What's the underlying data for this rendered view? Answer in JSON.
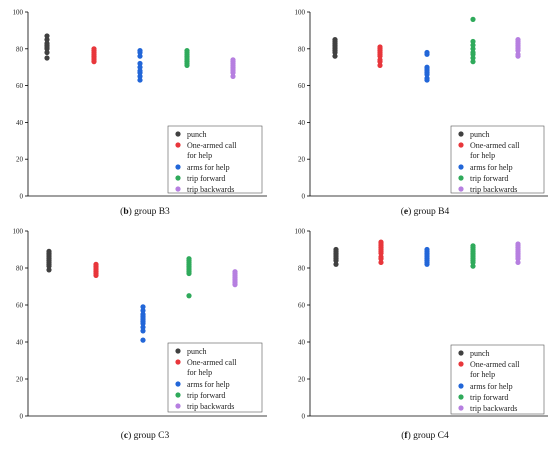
{
  "legend_entries": [
    "punch",
    "One-armed call for help",
    "arms for help",
    "trip forward",
    "trip backwards"
  ],
  "series_colors": {
    "punch": "#404040",
    "One-armed call for help": "#e8363b",
    "arms for help": "#2266d8",
    "trip forward": "#2faa5b",
    "trip backwards": "#b67fe0"
  },
  "panels": [
    {
      "caption_letter": "b",
      "caption_text": "group B3"
    },
    {
      "caption_letter": "e",
      "caption_text": "group B4"
    },
    {
      "caption_letter": "c",
      "caption_text": "group C3"
    },
    {
      "caption_letter": "f",
      "caption_text": "group C4"
    }
  ],
  "chart_data": [
    {
      "type": "scatter",
      "title": "(b) group B3",
      "ylim": [
        0,
        100
      ],
      "yticks": [
        0,
        20,
        40,
        60,
        80,
        100
      ],
      "grid": false,
      "legend_position": "bottom-right",
      "series": [
        {
          "name": "punch",
          "values": [
            75,
            78,
            80,
            81,
            82,
            83,
            85,
            87
          ]
        },
        {
          "name": "One-armed call for help",
          "values": [
            73,
            74,
            75,
            76,
            77,
            78,
            79,
            80
          ]
        },
        {
          "name": "arms for help",
          "values": [
            63,
            65,
            67,
            68,
            70,
            72,
            76,
            78,
            79
          ]
        },
        {
          "name": "trip forward",
          "values": [
            71,
            72,
            73,
            74,
            75,
            76,
            77,
            78,
            79
          ]
        },
        {
          "name": "trip backwards",
          "values": [
            65,
            67,
            68,
            69,
            70,
            71,
            72,
            73,
            74
          ]
        }
      ]
    },
    {
      "type": "scatter",
      "title": "(e) group B4",
      "ylim": [
        0,
        100
      ],
      "yticks": [
        0,
        20,
        40,
        60,
        80,
        100
      ],
      "grid": false,
      "legend_position": "bottom-right",
      "series": [
        {
          "name": "punch",
          "values": [
            76,
            78,
            79,
            80,
            81,
            82,
            83,
            84,
            85
          ]
        },
        {
          "name": "One-armed call for help",
          "values": [
            71,
            73,
            74,
            76,
            77,
            78,
            79,
            80,
            81
          ]
        },
        {
          "name": "arms for help",
          "values": [
            63,
            64,
            66,
            67,
            68,
            69,
            70,
            77,
            78
          ]
        },
        {
          "name": "trip forward",
          "values": [
            73,
            75,
            77,
            78,
            80,
            82,
            84,
            96
          ]
        },
        {
          "name": "trip backwards",
          "values": [
            76,
            77,
            79,
            80,
            81,
            82,
            83,
            84,
            85
          ]
        }
      ]
    },
    {
      "type": "scatter",
      "title": "(c) group C3",
      "ylim": [
        0,
        100
      ],
      "yticks": [
        0,
        20,
        40,
        60,
        80,
        100
      ],
      "grid": false,
      "legend_position": "bottom-right",
      "series": [
        {
          "name": "punch",
          "values": [
            79,
            81,
            82,
            83,
            84,
            85,
            86,
            87,
            88,
            89
          ]
        },
        {
          "name": "One-armed call for help",
          "values": [
            76,
            77,
            78,
            79,
            80,
            81,
            82
          ]
        },
        {
          "name": "arms for help",
          "values": [
            41,
            46,
            48,
            50,
            51,
            52,
            53,
            54,
            55,
            57,
            59
          ]
        },
        {
          "name": "trip forward",
          "values": [
            65,
            77,
            78,
            79,
            80,
            81,
            82,
            83,
            84,
            85
          ]
        },
        {
          "name": "trip backwards",
          "values": [
            71,
            72,
            73,
            74,
            75,
            76,
            77,
            78
          ]
        }
      ]
    },
    {
      "type": "scatter",
      "title": "(f) group C4",
      "ylim": [
        0,
        100
      ],
      "yticks": [
        0,
        20,
        40,
        60,
        80,
        100
      ],
      "grid": false,
      "legend_position": "bottom-right",
      "series": [
        {
          "name": "punch",
          "values": [
            82,
            84,
            85,
            86,
            87,
            88,
            89,
            90
          ]
        },
        {
          "name": "One-armed call for help",
          "values": [
            83,
            85,
            86,
            88,
            89,
            90,
            91,
            92,
            93,
            94
          ]
        },
        {
          "name": "arms for help",
          "values": [
            82,
            83,
            84,
            85,
            86,
            87,
            88,
            89,
            90
          ]
        },
        {
          "name": "trip forward",
          "values": [
            81,
            83,
            84,
            85,
            86,
            87,
            88,
            89,
            90,
            91,
            92
          ]
        },
        {
          "name": "trip backwards",
          "values": [
            83,
            85,
            86,
            87,
            88,
            89,
            90,
            91,
            92,
            93
          ]
        }
      ]
    }
  ]
}
